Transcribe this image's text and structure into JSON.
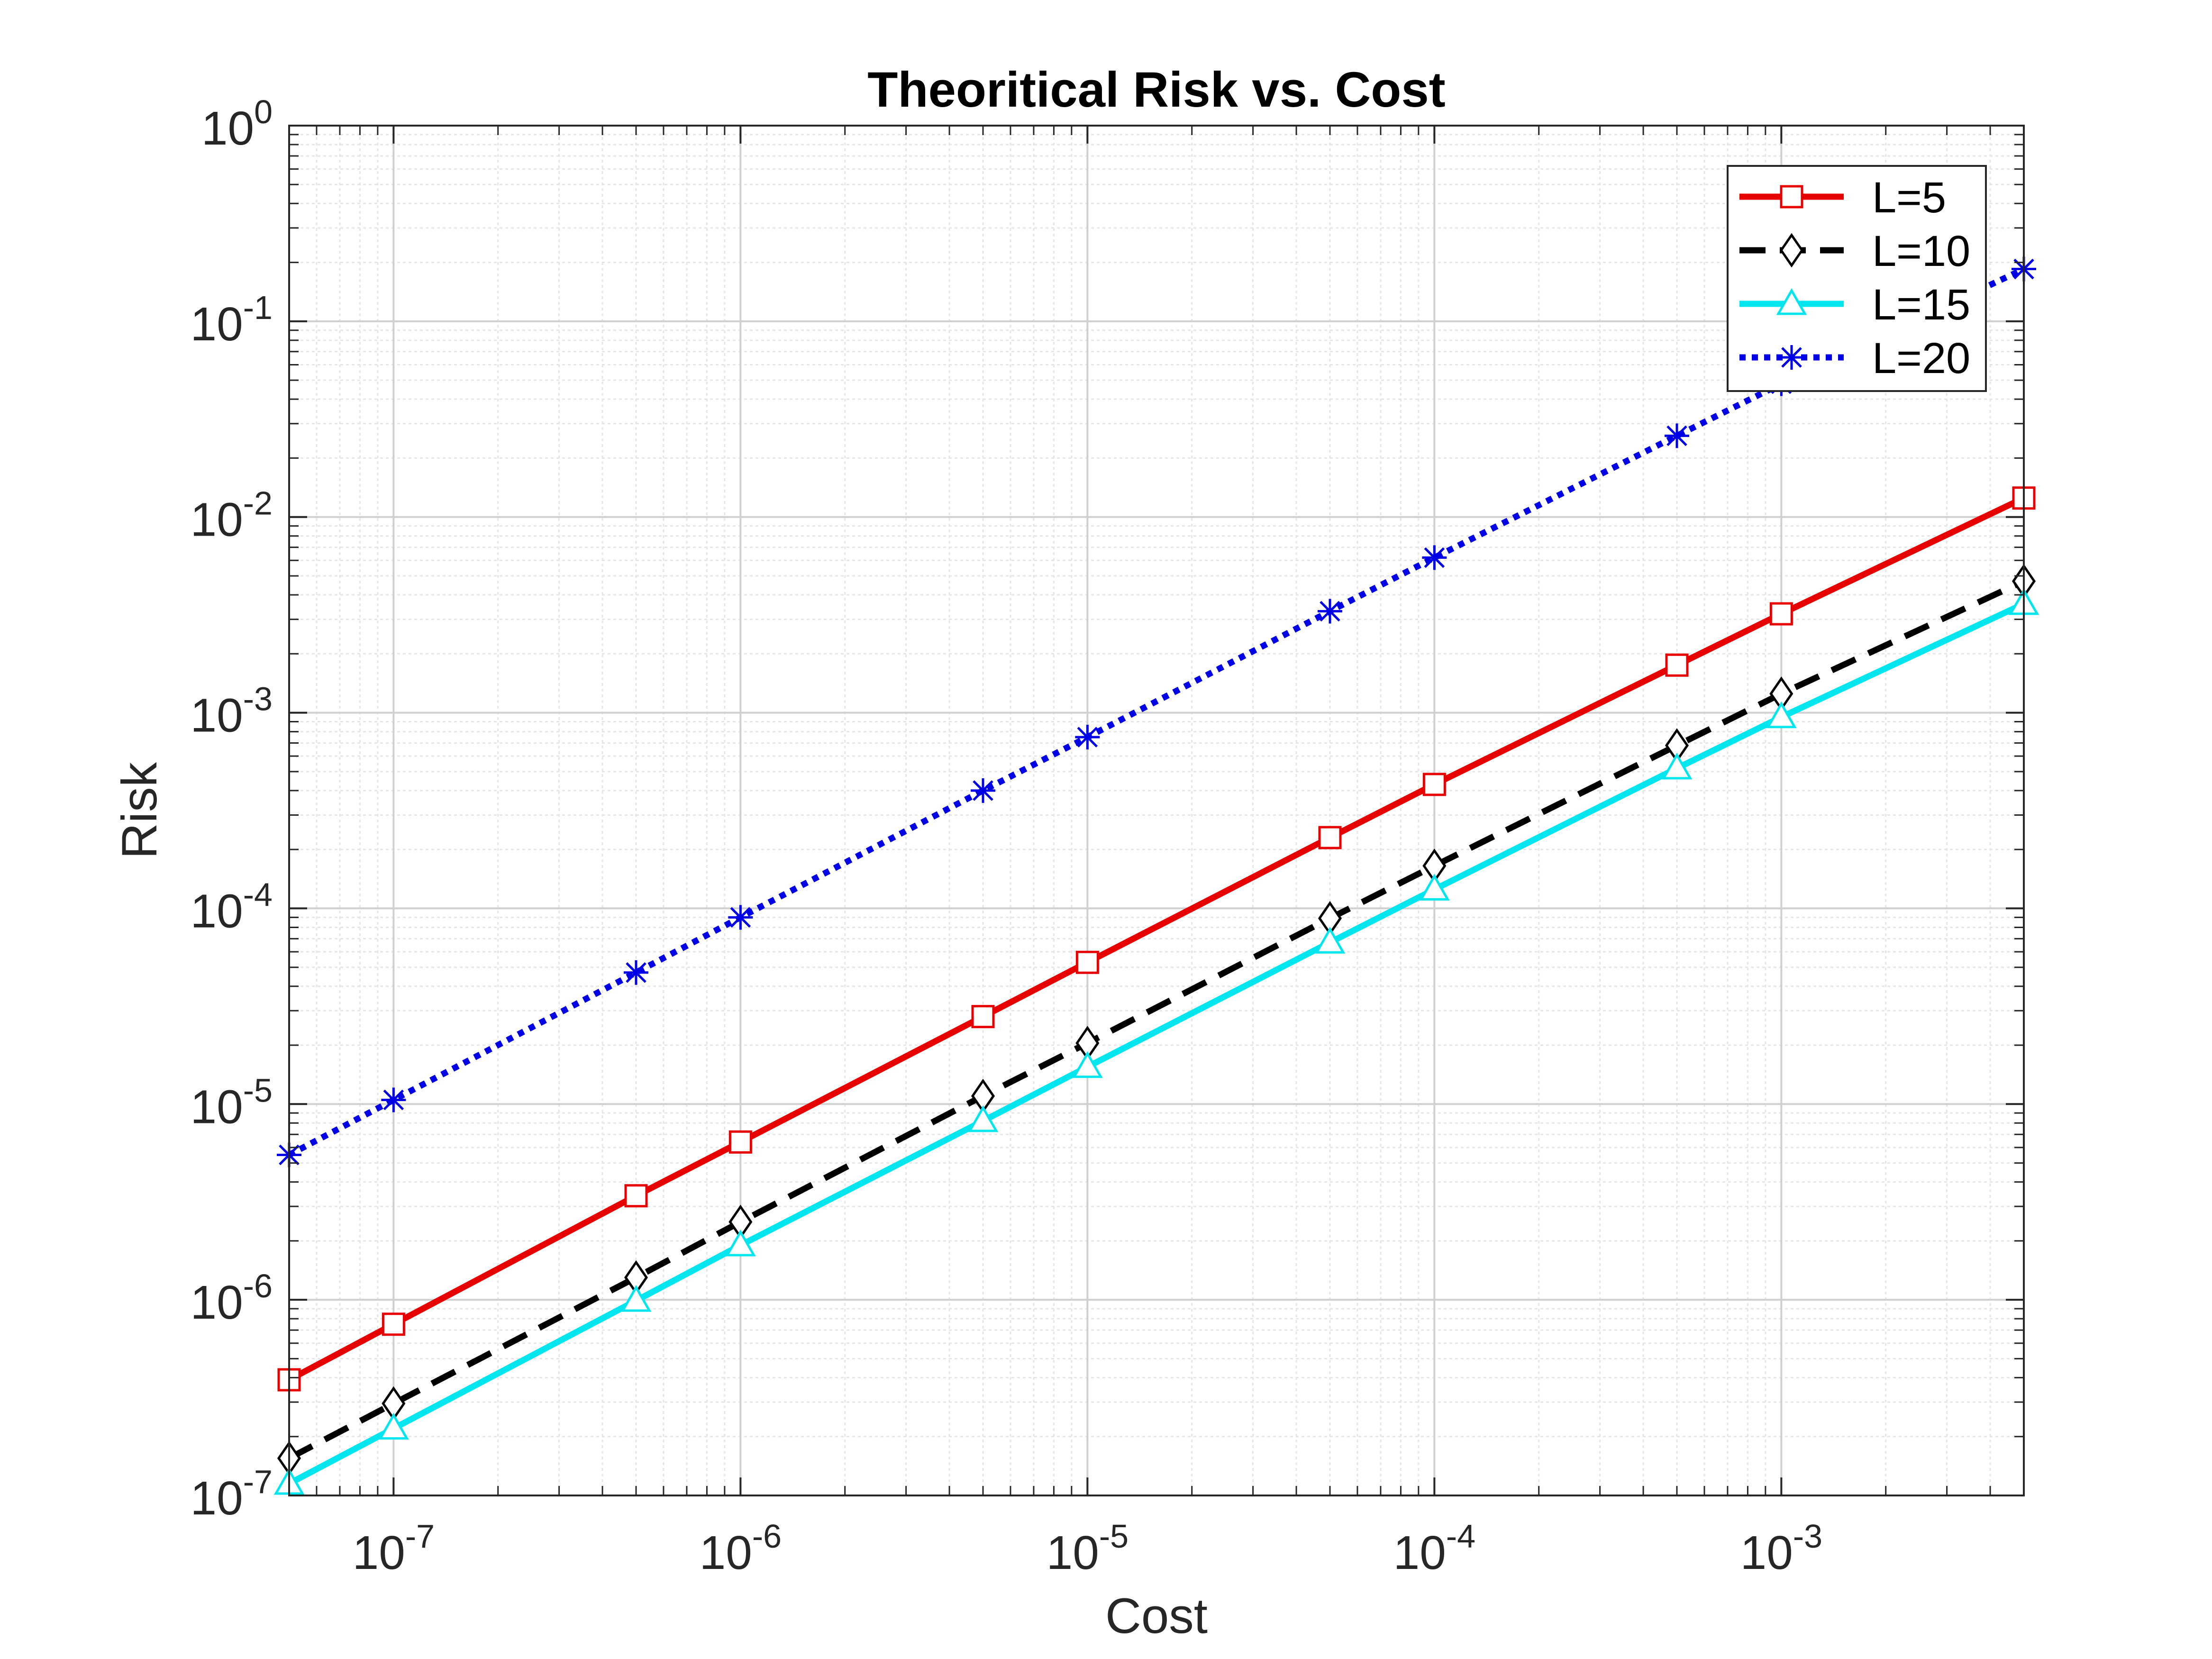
{
  "chart_data": {
    "type": "line",
    "title": "Theoritical Risk vs. Cost",
    "xlabel": "Cost",
    "ylabel": "Risk",
    "xscale": "log",
    "yscale": "log",
    "xlim": [
      5e-08,
      0.005
    ],
    "ylim": [
      1e-07,
      1
    ],
    "grid": true,
    "minor_grid": true,
    "legend_position": "top-right",
    "x_ticks": [
      {
        "value": 1e-07,
        "base": "10",
        "exp": "-7"
      },
      {
        "value": 1e-06,
        "base": "10",
        "exp": "-6"
      },
      {
        "value": 1e-05,
        "base": "10",
        "exp": "-5"
      },
      {
        "value": 0.0001,
        "base": "10",
        "exp": "-4"
      },
      {
        "value": 0.001,
        "base": "10",
        "exp": "-3"
      }
    ],
    "y_ticks": [
      {
        "value": 1e-07,
        "base": "10",
        "exp": "-7"
      },
      {
        "value": 1e-06,
        "base": "10",
        "exp": "-6"
      },
      {
        "value": 1e-05,
        "base": "10",
        "exp": "-5"
      },
      {
        "value": 0.0001,
        "base": "10",
        "exp": "-4"
      },
      {
        "value": 0.001,
        "base": "10",
        "exp": "-3"
      },
      {
        "value": 0.01,
        "base": "10",
        "exp": "-2"
      },
      {
        "value": 0.1,
        "base": "10",
        "exp": "-1"
      },
      {
        "value": 1,
        "base": "10",
        "exp": "0"
      }
    ],
    "x": [
      5e-08,
      1e-07,
      5e-07,
      1e-06,
      5e-06,
      1e-05,
      5e-05,
      0.0001,
      0.0005,
      0.001,
      0.005
    ],
    "series": [
      {
        "name": "L=5",
        "color": "#e60000",
        "dash": "solid",
        "marker": "square",
        "values": [
          3.9e-07,
          7.5e-07,
          3.4e-06,
          6.4e-06,
          2.8e-05,
          5.3e-05,
          0.00023,
          0.00043,
          0.00175,
          0.0032,
          0.0125
        ]
      },
      {
        "name": "L=10",
        "color": "#000000",
        "dash": "dashed",
        "marker": "diamond",
        "values": [
          1.55e-07,
          2.95e-07,
          1.3e-06,
          2.5e-06,
          1.1e-05,
          2.05e-05,
          8.9e-05,
          0.000165,
          0.00068,
          0.00125,
          0.0047
        ]
      },
      {
        "name": "L=15",
        "color": "#00e6ee",
        "dash": "solid",
        "marker": "triangle",
        "values": [
          1.15e-07,
          2.2e-07,
          9.9e-07,
          1.9e-06,
          8.2e-06,
          1.55e-05,
          6.7e-05,
          0.000125,
          0.00052,
          0.00095,
          0.0036
        ]
      },
      {
        "name": "L=20",
        "color": "#0000e6",
        "dash": "dotted",
        "marker": "asterisk",
        "values": [
          5.5e-06,
          1.05e-05,
          4.7e-05,
          9e-05,
          0.0004,
          0.00075,
          0.0033,
          0.0062,
          0.026,
          0.048,
          0.185
        ]
      }
    ]
  }
}
